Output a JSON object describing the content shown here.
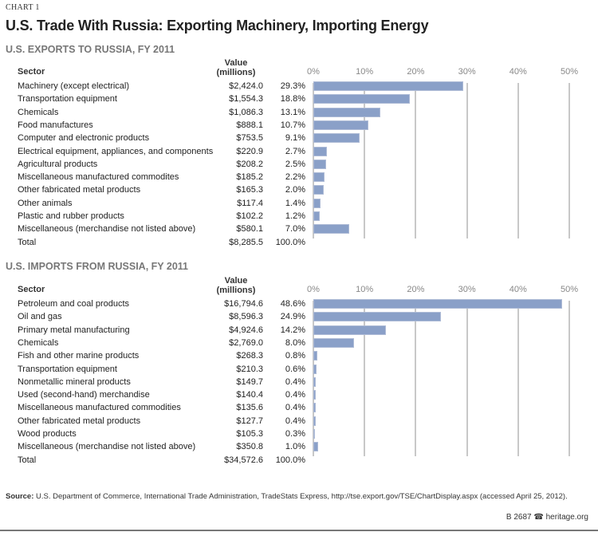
{
  "chart_label": "CHART 1",
  "title": "U.S. Trade With Russia: Exporting Machinery, Importing Energy",
  "chart_data": [
    {
      "type": "bar",
      "title": "U.S. EXPORTS TO RUSSIA, FY 2011",
      "column_headers": {
        "sector": "Sector",
        "value": "Value\n(millions)"
      },
      "xlim": [
        0,
        50
      ],
      "x_ticks": [
        "0%",
        "10%",
        "20%",
        "30%",
        "40%",
        "50%"
      ],
      "bar_color": "#8aa0c8",
      "rows": [
        {
          "sector": "Machinery (except electrical)",
          "value": "$2,424.0",
          "pct": "29.3%",
          "share": 29.3
        },
        {
          "sector": "Transportation equipment",
          "value": "$1,554.3",
          "pct": "18.8%",
          "share": 18.8
        },
        {
          "sector": "Chemicals",
          "value": "$1,086.3",
          "pct": "13.1%",
          "share": 13.1
        },
        {
          "sector": "Food manufactures",
          "value": "$888.1",
          "pct": "10.7%",
          "share": 10.7
        },
        {
          "sector": "Computer and electronic products",
          "value": "$753.5",
          "pct": "9.1%",
          "share": 9.1
        },
        {
          "sector": "Electrical equipment, appliances, and components",
          "value": "$220.9",
          "pct": "2.7%",
          "share": 2.7
        },
        {
          "sector": "Agricultural products",
          "value": "$208.2",
          "pct": "2.5%",
          "share": 2.5
        },
        {
          "sector": "Miscellaneous manufactured commodites",
          "value": "$185.2",
          "pct": "2.2%",
          "share": 2.2
        },
        {
          "sector": "Other fabricated metal products",
          "value": "$165.3",
          "pct": "2.0%",
          "share": 2.0
        },
        {
          "sector": "Other animals",
          "value": "$117.4",
          "pct": "1.4%",
          "share": 1.4
        },
        {
          "sector": "Plastic and rubber products",
          "value": "$102.2",
          "pct": "1.2%",
          "share": 1.2
        },
        {
          "sector": "Miscellaneous (merchandise not listed above)",
          "value": "$580.1",
          "pct": "7.0%",
          "share": 7.0
        }
      ],
      "total": {
        "sector": "Total",
        "value": "$8,285.5",
        "pct": "100.0%"
      }
    },
    {
      "type": "bar",
      "title": "U.S. IMPORTS FROM RUSSIA, FY 2011",
      "column_headers": {
        "sector": "Sector",
        "value": "Value\n(millions)"
      },
      "xlim": [
        0,
        50
      ],
      "x_ticks": [
        "0%",
        "10%",
        "20%",
        "30%",
        "40%",
        "50%"
      ],
      "bar_color": "#8aa0c8",
      "rows": [
        {
          "sector": "Petroleum and coal products",
          "value": "$16,794.6",
          "pct": "48.6%",
          "share": 48.6
        },
        {
          "sector": "Oil and gas",
          "value": "$8,596.3",
          "pct": "24.9%",
          "share": 24.9
        },
        {
          "sector": "Primary metal manufacturing",
          "value": "$4,924.6",
          "pct": "14.2%",
          "share": 14.2
        },
        {
          "sector": "Chemicals",
          "value": "$2,769.0",
          "pct": "8.0%",
          "share": 8.0
        },
        {
          "sector": "Fish and other marine products",
          "value": "$268.3",
          "pct": "0.8%",
          "share": 0.8
        },
        {
          "sector": "Transportation equipment",
          "value": "$210.3",
          "pct": "0.6%",
          "share": 0.6
        },
        {
          "sector": "Nonmetallic mineral products",
          "value": "$149.7",
          "pct": "0.4%",
          "share": 0.4
        },
        {
          "sector": "Used (second-hand) merchandise",
          "value": "$140.4",
          "pct": "0.4%",
          "share": 0.4
        },
        {
          "sector": "Miscellaneous manufactured commodities",
          "value": "$135.6",
          "pct": "0.4%",
          "share": 0.4
        },
        {
          "sector": "Other fabricated metal products",
          "value": "$127.7",
          "pct": "0.4%",
          "share": 0.4
        },
        {
          "sector": "Wood products",
          "value": "$105.3",
          "pct": "0.3%",
          "share": 0.3
        },
        {
          "sector": "Miscellaneous (merchandise not listed above)",
          "value": "$350.8",
          "pct": "1.0%",
          "share": 1.0
        }
      ],
      "total": {
        "sector": "Total",
        "value": "$34,572.6",
        "pct": "100.0%"
      }
    }
  ],
  "source": {
    "label": "Source:",
    "text": " U.S. Department of Commerce, International Trade Administration, TradeStats Express, http://tse.export.gov/TSE/ChartDisplay.aspx (accessed April 25, 2012)."
  },
  "footer": {
    "code": "B 2687",
    "icon": "liberty-bell-icon",
    "site": "heritage.org"
  }
}
